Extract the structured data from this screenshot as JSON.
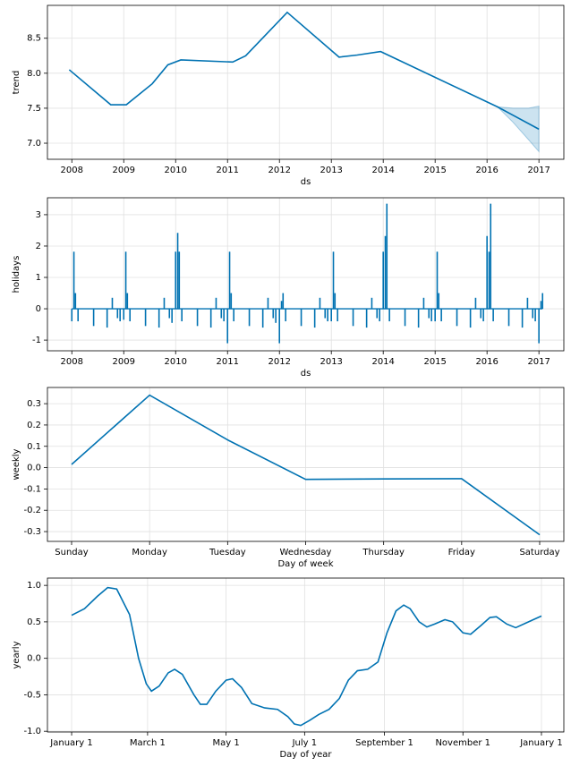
{
  "chart_data": [
    {
      "type": "line",
      "ylabel": "trend",
      "xlabel": "ds",
      "color": "#0072b2",
      "grid": true,
      "x": [
        2007.95,
        2008.75,
        2009.05,
        2009.55,
        2009.85,
        2010.1,
        2011.1,
        2011.35,
        2012.15,
        2013.15,
        2013.5,
        2013.95,
        2016.2,
        2017.0
      ],
      "values": [
        8.05,
        7.55,
        7.55,
        7.85,
        8.12,
        8.19,
        8.16,
        8.25,
        8.87,
        8.23,
        8.26,
        8.31,
        7.52,
        7.2
      ],
      "band": {
        "x": [
          2016.2,
          2016.5,
          2016.8,
          2017.0
        ],
        "upper": [
          7.52,
          7.5,
          7.5,
          7.53
        ],
        "lower": [
          7.52,
          7.3,
          7.05,
          6.88
        ]
      },
      "xlim": [
        2007.53,
        2017.48
      ],
      "ylim": [
        6.77,
        8.97
      ],
      "xticks": [
        2008,
        2009,
        2010,
        2011,
        2012,
        2013,
        2014,
        2015,
        2016,
        2017
      ],
      "yticks": [
        {
          "value": 7.0,
          "label": "7.0"
        },
        7.5,
        {
          "value": 8.0,
          "label": "8.0"
        },
        8.5
      ]
    },
    {
      "type": "stem",
      "ylabel": "holidays",
      "xlabel": "ds",
      "color": "#0072b2",
      "grid": true,
      "x": [
        2008.0,
        2008.04,
        2008.07,
        2008.12,
        2008.42,
        2008.68,
        2008.78,
        2008.88,
        2008.93,
        2009.0,
        2009.04,
        2009.07,
        2009.12,
        2009.42,
        2009.68,
        2009.78,
        2009.88,
        2009.93,
        2010.0,
        2010.04,
        2010.07,
        2010.12,
        2010.42,
        2010.68,
        2010.78,
        2010.88,
        2010.93,
        2011.0,
        2011.04,
        2011.07,
        2011.12,
        2011.42,
        2011.68,
        2011.78,
        2011.88,
        2011.93,
        2012.0,
        2012.04,
        2012.07,
        2012.12,
        2012.42,
        2012.68,
        2012.78,
        2012.88,
        2012.93,
        2013.0,
        2013.04,
        2013.07,
        2013.12,
        2013.42,
        2013.68,
        2013.78,
        2013.88,
        2013.93,
        2014.0,
        2014.04,
        2014.07,
        2014.12,
        2014.42,
        2014.68,
        2014.78,
        2014.88,
        2014.93,
        2015.0,
        2015.04,
        2015.07,
        2015.12,
        2015.42,
        2015.68,
        2015.78,
        2015.88,
        2015.93,
        2016.0,
        2016.04,
        2016.07,
        2016.12,
        2016.42,
        2016.68,
        2016.78,
        2016.88,
        2016.93,
        2017.0,
        2017.04,
        2017.07
      ],
      "values": [
        -0.4,
        1.82,
        0.5,
        -0.4,
        -0.55,
        -0.6,
        0.35,
        -0.3,
        -0.4,
        -0.35,
        1.82,
        0.5,
        -0.4,
        -0.55,
        -0.6,
        0.35,
        -0.3,
        -0.45,
        1.82,
        2.42,
        1.82,
        -0.4,
        -0.55,
        -0.6,
        0.35,
        -0.3,
        -0.4,
        -1.1,
        1.82,
        0.5,
        -0.4,
        -0.55,
        -0.6,
        0.35,
        -0.3,
        -0.45,
        -1.1,
        0.25,
        0.5,
        -0.4,
        -0.55,
        -0.6,
        0.35,
        -0.3,
        -0.4,
        -0.4,
        1.82,
        0.5,
        -0.4,
        -0.55,
        -0.6,
        0.35,
        -0.3,
        -0.4,
        1.82,
        2.32,
        3.35,
        -0.4,
        -0.55,
        -0.6,
        0.35,
        -0.3,
        -0.4,
        -0.4,
        1.82,
        0.5,
        -0.4,
        -0.55,
        -0.6,
        0.35,
        -0.3,
        -0.4,
        2.32,
        1.82,
        3.35,
        -0.4,
        -0.55,
        -0.6,
        0.35,
        -0.3,
        -0.4,
        -1.1,
        0.25,
        0.5
      ],
      "xlim": [
        2007.53,
        2017.48
      ],
      "ylim": [
        -1.34,
        3.54
      ],
      "xticks": [
        2008,
        2009,
        2010,
        2011,
        2012,
        2013,
        2014,
        2015,
        2016,
        2017
      ],
      "yticks": [
        -1,
        0,
        1,
        2,
        3
      ]
    },
    {
      "type": "line",
      "ylabel": "weekly",
      "xlabel": "Day of week",
      "color": "#0072b2",
      "grid": true,
      "categories": [
        "Sunday",
        "Monday",
        "Tuesday",
        "Wednesday",
        "Thursday",
        "Friday",
        "Saturday"
      ],
      "values": [
        0.015,
        0.34,
        0.13,
        -0.055,
        -0.053,
        -0.052,
        -0.315
      ],
      "ylim": [
        -0.346,
        0.376
      ],
      "yticks": [
        -0.3,
        -0.2,
        -0.1,
        {
          "value": 0,
          "label": "0.0"
        },
        0.1,
        0.2,
        0.3
      ]
    },
    {
      "type": "line",
      "ylabel": "yearly",
      "xlabel": "Day of year",
      "color": "#0072b2",
      "grid": true,
      "x": [
        0,
        10,
        20,
        28,
        35,
        45,
        52,
        58,
        62,
        68,
        75,
        80,
        86,
        95,
        100,
        105,
        112,
        120,
        125,
        132,
        140,
        150,
        160,
        168,
        173,
        178,
        185,
        192,
        200,
        208,
        215,
        222,
        230,
        238,
        245,
        252,
        258,
        263,
        270,
        276,
        282,
        290,
        296,
        304,
        310,
        318,
        325,
        330,
        338,
        345,
        355,
        365
      ],
      "values": [
        0.59,
        0.68,
        0.85,
        0.97,
        0.95,
        0.6,
        0.0,
        -0.35,
        -0.45,
        -0.38,
        -0.2,
        -0.15,
        -0.22,
        -0.5,
        -0.63,
        -0.63,
        -0.45,
        -0.3,
        -0.28,
        -0.4,
        -0.62,
        -0.68,
        -0.7,
        -0.8,
        -0.9,
        -0.92,
        -0.85,
        -0.77,
        -0.7,
        -0.55,
        -0.3,
        -0.17,
        -0.15,
        -0.05,
        0.35,
        0.65,
        0.73,
        0.68,
        0.5,
        0.43,
        0.47,
        0.53,
        0.5,
        0.35,
        0.33,
        0.45,
        0.56,
        0.57,
        0.47,
        0.42,
        0.5,
        0.58
      ],
      "xlim": [
        -18.8,
        382.4
      ],
      "ylim": [
        -1.01,
        1.1
      ],
      "xticks": [
        {
          "value": 0,
          "label": "January 1"
        },
        {
          "value": 59,
          "label": "March 1"
        },
        {
          "value": 120,
          "label": "May 1"
        },
        {
          "value": 181,
          "label": "July 1"
        },
        {
          "value": 243,
          "label": "September 1"
        },
        {
          "value": 304,
          "label": "November 1"
        },
        {
          "value": 365,
          "label": "January 1"
        }
      ],
      "yticks": [
        {
          "value": -1,
          "label": "-1.0"
        },
        -0.5,
        {
          "value": 0,
          "label": "0.0"
        },
        0.5,
        {
          "value": 1,
          "label": "1.0"
        }
      ]
    }
  ]
}
